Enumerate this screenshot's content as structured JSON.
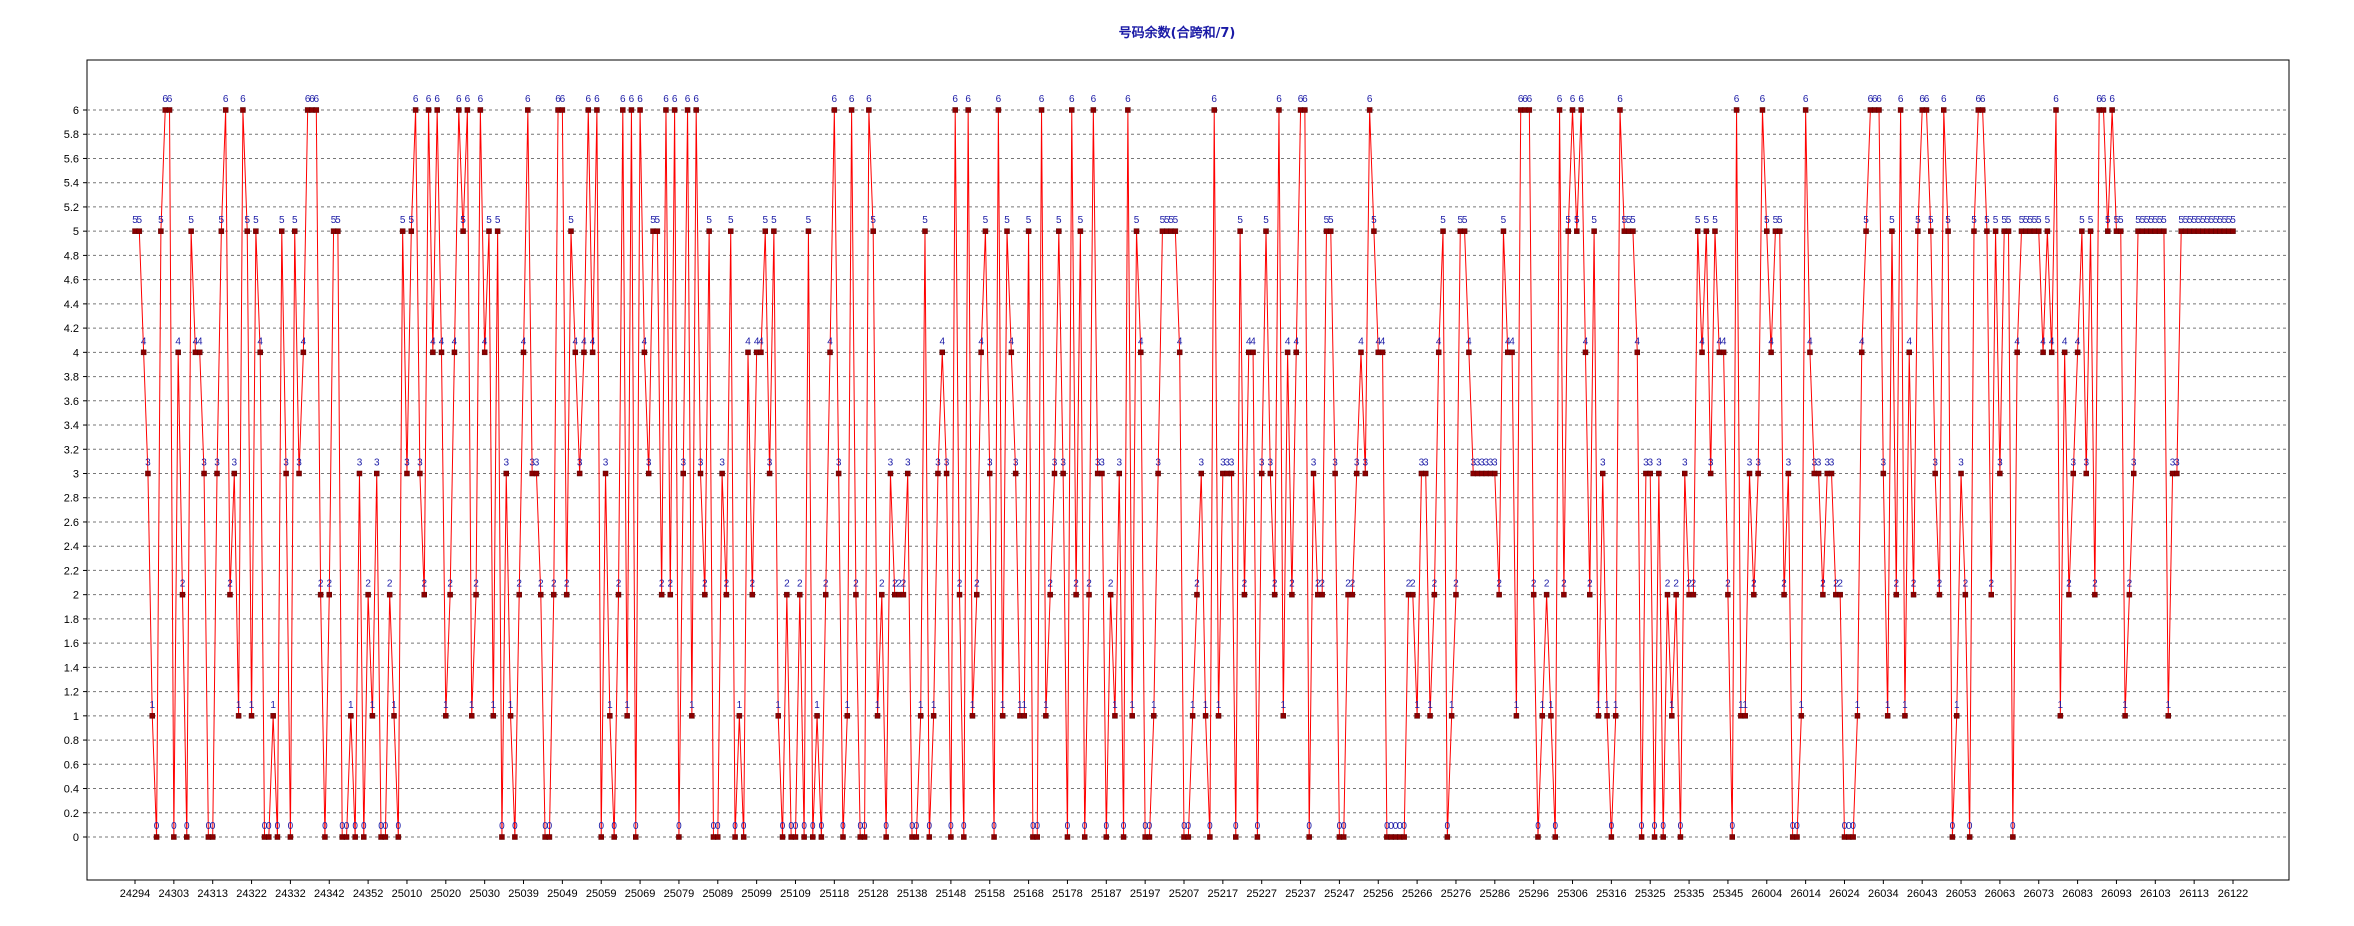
{
  "chart_data": {
    "type": "line",
    "title": "号码余数(合跨和/7)",
    "xlabel": "",
    "ylabel": "",
    "ylim": [
      0,
      6
    ],
    "ytick_step": 0.2,
    "grid": true,
    "legend": "none",
    "line_color": "#ff0000",
    "marker_color": "#8b0000",
    "label_color": "#1a1aa6",
    "x_tick_labels": [
      "24294",
      "24303",
      "24313",
      "24322",
      "24332",
      "24342",
      "24352",
      "25010",
      "25020",
      "25030",
      "25039",
      "25049",
      "25059",
      "25069",
      "25079",
      "25089",
      "25099",
      "25109",
      "25118",
      "25128",
      "25138",
      "25148",
      "25158",
      "25168",
      "25178",
      "25187",
      "25197",
      "25207",
      "25217",
      "25227",
      "25237",
      "25247",
      "25256",
      "25266",
      "25276",
      "25286",
      "25296",
      "25306",
      "25316",
      "25325",
      "25335",
      "25345",
      "26004",
      "26014",
      "26024",
      "26034",
      "26043",
      "26053",
      "26063",
      "26073",
      "26083",
      "26093",
      "26103",
      "26113",
      "26122"
    ],
    "values": [
      5,
      5,
      4,
      3,
      1,
      0,
      5,
      6,
      6,
      0,
      4,
      2,
      0,
      5,
      4,
      4,
      3,
      0,
      0,
      3,
      5,
      6,
      2,
      3,
      1,
      6,
      5,
      1,
      5,
      4,
      0,
      0,
      1,
      0,
      5,
      3,
      0,
      5,
      3,
      4,
      6,
      6,
      6,
      2,
      0,
      2,
      5,
      5,
      0,
      0,
      1,
      0,
      3,
      0,
      2,
      1,
      3,
      0,
      0,
      2,
      1,
      0,
      5,
      3,
      5,
      6,
      3,
      2,
      6,
      4,
      6,
      4,
      1,
      2,
      4,
      6,
      5,
      6,
      1,
      2,
      6,
      4,
      5,
      1,
      5,
      0,
      3,
      1,
      0,
      2,
      4,
      6,
      3,
      3,
      2,
      0,
      0,
      2,
      6,
      6,
      2,
      5,
      4,
      3,
      4,
      6,
      4,
      6,
      0,
      3,
      1,
      0,
      2,
      6,
      1,
      6,
      0,
      6,
      4,
      3,
      5,
      5,
      2,
      6,
      2,
      6,
      0,
      3,
      6,
      1,
      6,
      3,
      2,
      5,
      0,
      0,
      3,
      2,
      5,
      0,
      1,
      0,
      4,
      2,
      4,
      4,
      5,
      3,
      5,
      1,
      0,
      2,
      0,
      0,
      2,
      0,
      5,
      0,
      1,
      0,
      2,
      4,
      6,
      3,
      0,
      1,
      6,
      2,
      0,
      0,
      6,
      5,
      1,
      2,
      0,
      3,
      2,
      2,
      2,
      3,
      0,
      0,
      1,
      5,
      0,
      1,
      3,
      4,
      3,
      0,
      6,
      2,
      0,
      6,
      1,
      2,
      4,
      5,
      3,
      0,
      6,
      1,
      5,
      4,
      3,
      1,
      1,
      5,
      0,
      0,
      6,
      1,
      2,
      3,
      5,
      3,
      0,
      6,
      2,
      5,
      0,
      2,
      6,
      3,
      3,
      0,
      2,
      1,
      3,
      0,
      6,
      1,
      5,
      4,
      0,
      0,
      1,
      3,
      5,
      5,
      5,
      5,
      4,
      0,
      0,
      1,
      2,
      3,
      1,
      0,
      6,
      1,
      3,
      3,
      3,
      0,
      5,
      2,
      4,
      4,
      0,
      3,
      5,
      3,
      2,
      6,
      1,
      4,
      2,
      4,
      6,
      6,
      0,
      3,
      2,
      2,
      5,
      5,
      3,
      0,
      0,
      2,
      2,
      3,
      4,
      3,
      6,
      5,
      4,
      4,
      0,
      0,
      0,
      0,
      0,
      2,
      2,
      1,
      3,
      3,
      1,
      2,
      4,
      5,
      0,
      1,
      2,
      5,
      5,
      4,
      3,
      3,
      3,
      3,
      3,
      3,
      2,
      5,
      4,
      4,
      1,
      6,
      6,
      6,
      2,
      0,
      1,
      2,
      1,
      0,
      6,
      2,
      5,
      6,
      5,
      6,
      4,
      2,
      5,
      1,
      3,
      1,
      0,
      1,
      6,
      5,
      5,
      5,
      4,
      0,
      3,
      3,
      0,
      3,
      0,
      2,
      1,
      2,
      0,
      3,
      2,
      2,
      5,
      4,
      5,
      3,
      5,
      4,
      4,
      2,
      0,
      6,
      1,
      1,
      3,
      2,
      3,
      6,
      5,
      4,
      5,
      5,
      2,
      3,
      0,
      0,
      1,
      6,
      4,
      3,
      3,
      2,
      3,
      3,
      2,
      2,
      0,
      0,
      0,
      1,
      4,
      5,
      6,
      6,
      6,
      3,
      1,
      5,
      2,
      6,
      1,
      4,
      2,
      5,
      6,
      6,
      5,
      3,
      2,
      6,
      5,
      0,
      1,
      3,
      2,
      0,
      5,
      6,
      6,
      5,
      2,
      5,
      3,
      5,
      5,
      0,
      4,
      5,
      5,
      5,
      5,
      5,
      4,
      5,
      4,
      6,
      1,
      4,
      2,
      3,
      4,
      5,
      3,
      5,
      2,
      6,
      6,
      5,
      6,
      5,
      5,
      1,
      2,
      3,
      5,
      5,
      5,
      5,
      5,
      5,
      5,
      1,
      3,
      3,
      5,
      5,
      5,
      5,
      5,
      5,
      5,
      5,
      5,
      5,
      5,
      5,
      5
    ],
    "data_labels": true
  }
}
